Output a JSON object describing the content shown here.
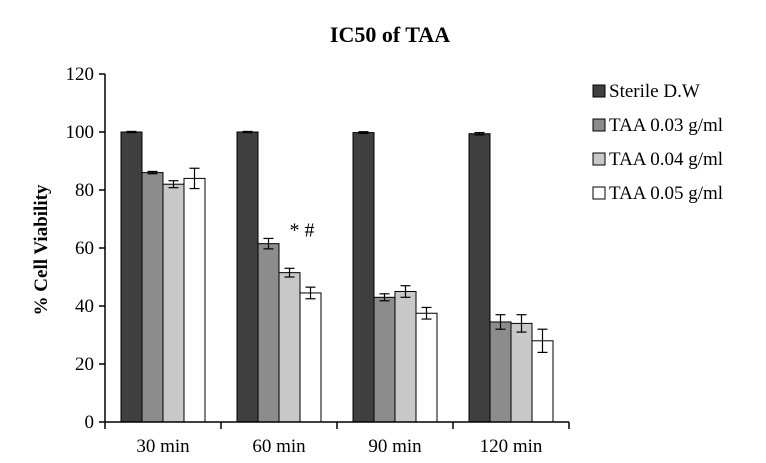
{
  "chart_data": {
    "type": "bar",
    "title": "IC50 of TAA",
    "xlabel": "",
    "ylabel": "% Cell Viability",
    "ylim": [
      0,
      120
    ],
    "yticks": [
      0,
      20,
      40,
      60,
      80,
      100,
      120
    ],
    "categories": [
      "30 min",
      "60 min",
      "90 min",
      "120 min"
    ],
    "legend_position": "right",
    "grid": false,
    "series": [
      {
        "name": "Sterile D.W",
        "color": "#404040",
        "values": [
          100,
          100,
          99.8,
          99.4
        ],
        "errors": [
          0.2,
          0.2,
          0.3,
          0.4
        ]
      },
      {
        "name": "TAA 0.03 g/ml",
        "color": "#8c8c8c",
        "values": [
          86,
          61.5,
          43,
          34.5
        ],
        "errors": [
          0.4,
          1.8,
          1.2,
          2.5
        ]
      },
      {
        "name": "TAA 0.04 g/ml",
        "color": "#c8c8c8",
        "values": [
          82,
          51.5,
          45,
          34
        ],
        "errors": [
          1.2,
          1.5,
          2.0,
          3.0
        ]
      },
      {
        "name": "TAA 0.05 g/ml",
        "color": "#ffffff",
        "values": [
          84,
          44.5,
          37.5,
          28
        ],
        "errors": [
          3.5,
          2.0,
          2.0,
          4.0
        ]
      }
    ],
    "annotations": [
      {
        "text": "* #",
        "category": "60 min",
        "series": "TAA 0.04 g/ml",
        "y": 64
      }
    ]
  }
}
